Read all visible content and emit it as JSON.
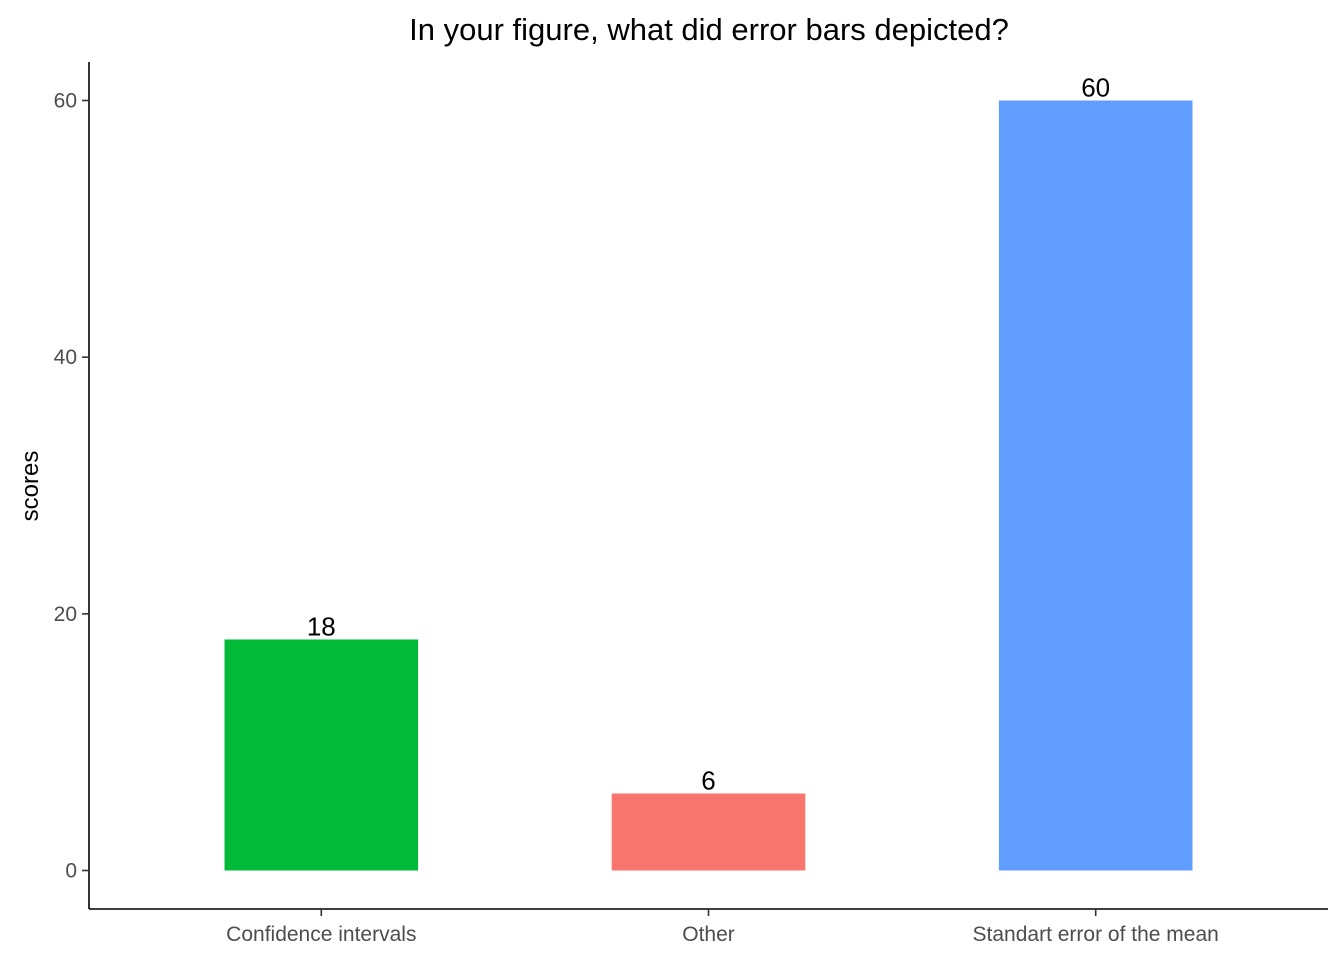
{
  "chart_data": {
    "type": "bar",
    "title": "In your figure, what did error bars depicted?",
    "xlabel": "",
    "ylabel": "scores",
    "categories": [
      "Confidence intervals",
      "Other",
      "Standart error of the mean"
    ],
    "values": [
      18,
      6,
      60
    ],
    "colors": [
      "#00BA38",
      "#F8766D",
      "#619CFF"
    ],
    "data_labels": [
      "18",
      "6",
      "60"
    ],
    "y_ticks": [
      0,
      20,
      40,
      60
    ],
    "y_tick_labels": [
      "0",
      "20",
      "40",
      "60"
    ],
    "ylim": [
      -3,
      63
    ],
    "grid": false,
    "legend": "none"
  }
}
